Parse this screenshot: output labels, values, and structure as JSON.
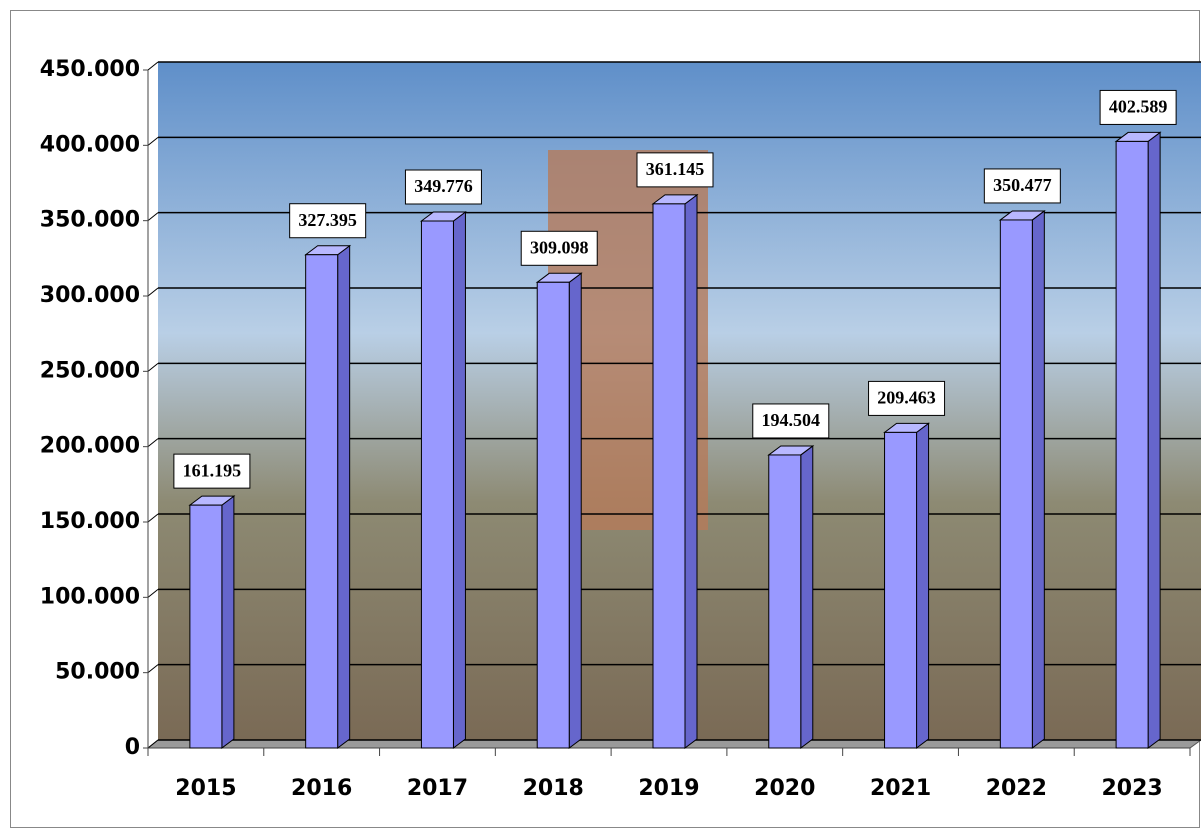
{
  "chart_data": {
    "type": "bar",
    "categories": [
      "2015",
      "2016",
      "2017",
      "2018",
      "2019",
      "2020",
      "2021",
      "2022",
      "2023"
    ],
    "values": [
      161195,
      327395,
      349776,
      309098,
      361145,
      194504,
      209463,
      350477,
      402589
    ],
    "value_labels": [
      "161.195",
      "327.395",
      "349.776",
      "309.098",
      "361.145",
      "194.504",
      "209.463",
      "350.477",
      "402.589"
    ],
    "color": "#9999ff",
    "ylim": [
      0,
      450000
    ],
    "yticks": [
      0,
      {
        "value": 50000,
        "label": "50.000"
      },
      {
        "value": 100000,
        "label": "100.000"
      },
      {
        "value": 150000,
        "label": "150.000"
      },
      {
        "value": 200000,
        "label": "200.000"
      },
      {
        "value": 250000,
        "label": "250.000"
      },
      {
        "value": 300000,
        "label": "300.000"
      },
      {
        "value": 350000,
        "label": "350.000"
      },
      {
        "value": 400000,
        "label": "400.000"
      },
      {
        "value": 450000,
        "label": "450.000"
      }
    ],
    "grid": true
  }
}
